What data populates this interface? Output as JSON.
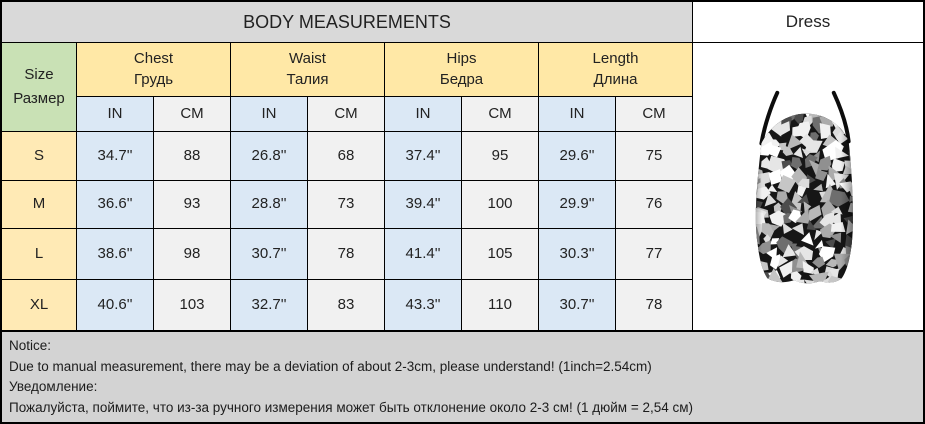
{
  "header": {
    "title": "BODY MEASUREMENTS",
    "product_label": "Dress"
  },
  "size_chart": {
    "size_header_en": "Size",
    "size_header_ru": "Размер",
    "groups": [
      {
        "en": "Chest",
        "ru": "Грудь"
      },
      {
        "en": "Waist",
        "ru": "Талия"
      },
      {
        "en": "Hips",
        "ru": "Бедра"
      },
      {
        "en": "Length",
        "ru": "Длина"
      }
    ],
    "units": [
      "IN",
      "CM"
    ],
    "rows": [
      {
        "size": "S",
        "cells": [
          "34.7''",
          "88",
          "26.8''",
          "68",
          "37.4''",
          "95",
          "29.6''",
          "75"
        ]
      },
      {
        "size": "M",
        "cells": [
          "36.6''",
          "93",
          "28.8''",
          "73",
          "39.4''",
          "100",
          "29.9''",
          "76"
        ]
      },
      {
        "size": "L",
        "cells": [
          "38.6''",
          "98",
          "30.7''",
          "78",
          "41.4''",
          "105",
          "30.3''",
          "77"
        ]
      },
      {
        "size": "XL",
        "cells": [
          "40.6''",
          "103",
          "32.7''",
          "83",
          "43.3''",
          "110",
          "30.7''",
          "78"
        ]
      }
    ]
  },
  "notice": {
    "label_en": "Notice:",
    "text_en": "Due to manual measurement, there may be a deviation of about 2-3cm, please understand! (1inch=2.54cm)",
    "label_ru": "Уведомление:",
    "text_ru": "Пожалуйста, поймите, что из-за ручного измерения может быть отклонение около 2-3 см! (1 дюйм = 2,54 см)"
  },
  "illustration": {
    "name": "sequin-mosaic-cami-dress"
  },
  "colors": {
    "title_bg": "#d9d9d9",
    "size_header_bg": "#c9e1b5",
    "group_header_bg": "#ffe8a6",
    "row_label_bg": "#ffeab5",
    "in_col_bg": "#dbe8f5",
    "cm_col_bg": "#f1f1f1",
    "notice_bg": "#d3d3d3",
    "border": "#000000"
  }
}
